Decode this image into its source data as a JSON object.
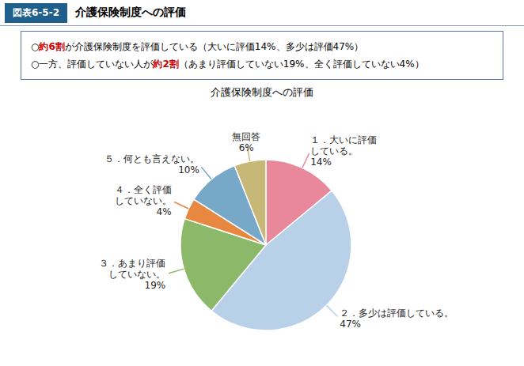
{
  "chart_data": {
    "type": "pie",
    "title": "介護保険制度への評価",
    "header": {
      "label": "図表6-5-2",
      "text": "介護保険制度への評価"
    },
    "annotations": [
      [
        {
          "text": "○",
          "bold": false
        },
        {
          "text": "約6割",
          "bold": true,
          "color": "#cc0000"
        },
        {
          "text": "が介護保険制度を評価している（大いに評価14%、多少は評価47%）",
          "bold": false
        }
      ],
      [
        {
          "text": "○一方、評価していない人が",
          "bold": false
        },
        {
          "text": "約2割",
          "bold": true,
          "color": "#cc0000"
        },
        {
          "text": "（あまり評価していない19%、全く評価していない4%）",
          "bold": false
        }
      ]
    ],
    "categories": [
      "１．大いに評価\nしている。",
      "２．多少は評価している。",
      "３．あまり評価\nしていない。",
      "４．全く評価\nしていない。",
      "５．何とも言えない。",
      "無回答"
    ],
    "values": [
      14,
      47,
      19,
      4,
      10,
      6
    ],
    "value_labels": [
      "14%",
      "47%",
      "19%",
      "4%",
      "10%",
      "6%"
    ],
    "colors": [
      "#e8889a",
      "#b8d0e8",
      "#8cb86a",
      "#e88840",
      "#78a8c8",
      "#c8b878"
    ],
    "data_labels": true
  }
}
